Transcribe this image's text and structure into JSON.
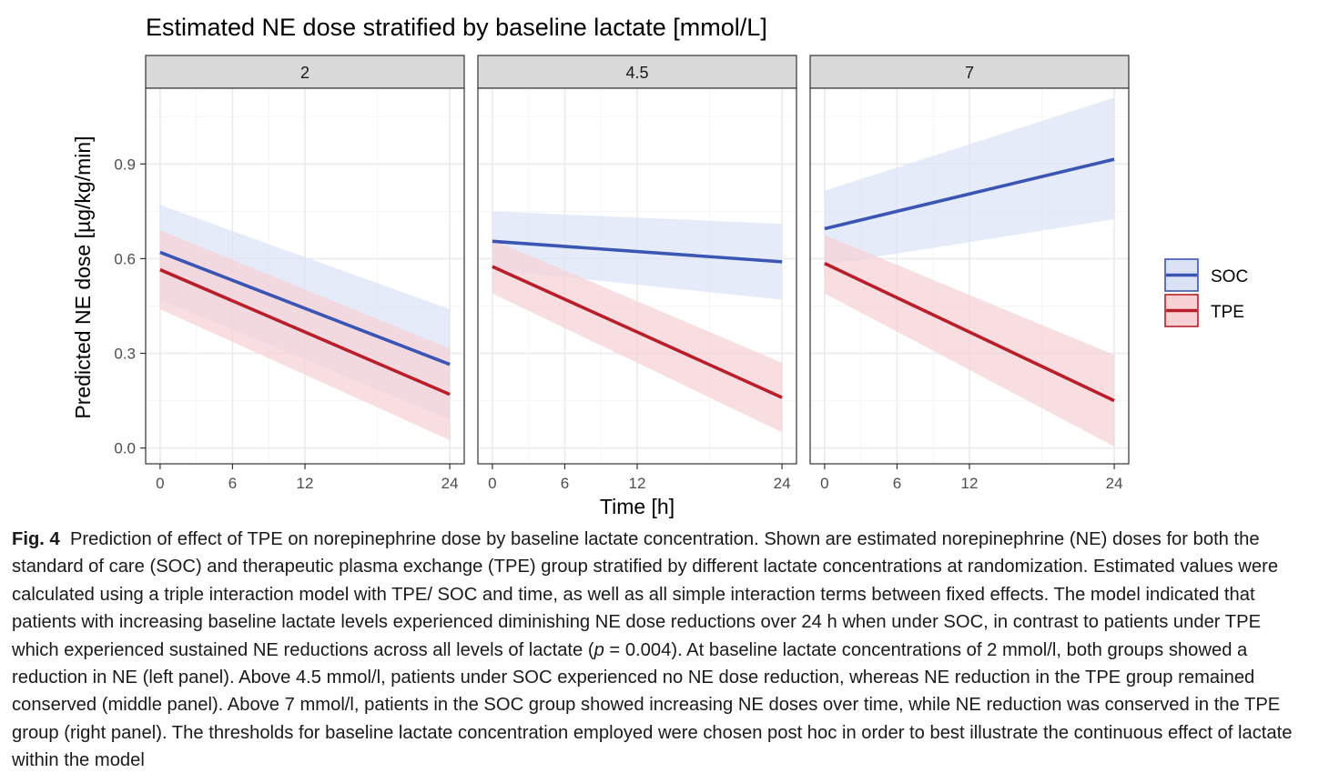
{
  "chart_data": {
    "type": "line",
    "title": "Estimated NE dose stratified by baseline lactate [mmol/L]",
    "xlabel": "Time [h]",
    "ylabel": "Predicted NE dose [µg/kg/min]",
    "x_ticks": [
      0,
      6,
      12,
      24
    ],
    "y_ticks": [
      0.0,
      0.3,
      0.6,
      0.9
    ],
    "y_tick_labels": [
      "0.0",
      "0.3",
      "0.6",
      "0.9"
    ],
    "xlim": [
      -1.2,
      25.2
    ],
    "ylim": [
      -0.05,
      1.14
    ],
    "grid": true,
    "legend_position": "right",
    "facets": [
      {
        "label": "2",
        "series": [
          {
            "name": "SOC",
            "x": [
              0,
              24
            ],
            "y": [
              0.62,
              0.265
            ],
            "lower": [
              0.47,
              0.09
            ],
            "upper": [
              0.77,
              0.44
            ]
          },
          {
            "name": "TPE",
            "x": [
              0,
              24
            ],
            "y": [
              0.565,
              0.17
            ],
            "lower": [
              0.44,
              0.025
            ],
            "upper": [
              0.69,
              0.315
            ]
          }
        ]
      },
      {
        "label": "4.5",
        "series": [
          {
            "name": "SOC",
            "x": [
              0,
              24
            ],
            "y": [
              0.655,
              0.59
            ],
            "lower": [
              0.565,
              0.47
            ],
            "upper": [
              0.75,
              0.71
            ]
          },
          {
            "name": "TPE",
            "x": [
              0,
              24
            ],
            "y": [
              0.575,
              0.16
            ],
            "lower": [
              0.49,
              0.05
            ],
            "upper": [
              0.66,
              0.27
            ]
          }
        ]
      },
      {
        "label": "7",
        "series": [
          {
            "name": "SOC",
            "x": [
              0,
              24
            ],
            "y": [
              0.695,
              0.915
            ],
            "lower": [
              0.58,
              0.725
            ],
            "upper": [
              0.815,
              1.11
            ]
          },
          {
            "name": "TPE",
            "x": [
              0,
              24
            ],
            "y": [
              0.585,
              0.15
            ],
            "lower": [
              0.49,
              0.005
            ],
            "upper": [
              0.675,
              0.295
            ]
          }
        ]
      }
    ],
    "legend": [
      {
        "name": "SOC",
        "color": "#3a55b4",
        "fill": "#dbe2f6"
      },
      {
        "name": "TPE",
        "color": "#b81f2a",
        "fill": "#f7d0d4"
      }
    ]
  },
  "caption": {
    "label": "Fig. 4",
    "text_before_p": "Prediction of effect of TPE on norepinephrine dose by baseline lactate concentration. Shown are estimated norepinephrine (NE) doses for both the standard of care (SOC) and therapeutic plasma exchange (TPE) group stratified by different lactate concentrations at randomization. Estimated values were calculated using a triple interaction model with TPE/ SOC and time, as well as all simple interaction terms between fixed effects. The model indicated that patients with increasing baseline lactate levels experienced diminishing NE dose reductions over 24 h when under SOC, in contrast to patients under TPE which experienced sustained NE reductions across all levels of lactate (",
    "p_symbol": "p",
    "text_after_p": " = 0.004). At baseline lactate concentrations of 2 mmol/l, both groups showed a reduction in NE (left panel). Above 4.5 mmol/l, patients under SOC experienced no NE dose reduction, whereas NE reduction in the TPE group remained conserved (middle panel). Above 7 mmol/l, patients in the SOC group showed increasing NE doses over time, while NE reduction was conserved in the TPE group (right panel). The thresholds for baseline lactate concentration employed were chosen post hoc in order to best illustrate the continuous effect of lactate within the model"
  },
  "colors": {
    "panel_border": "#333333",
    "strip_fill": "#d9d9d9",
    "grid_major": "#ebebeb",
    "grid_minor": "#f5f5f5"
  }
}
